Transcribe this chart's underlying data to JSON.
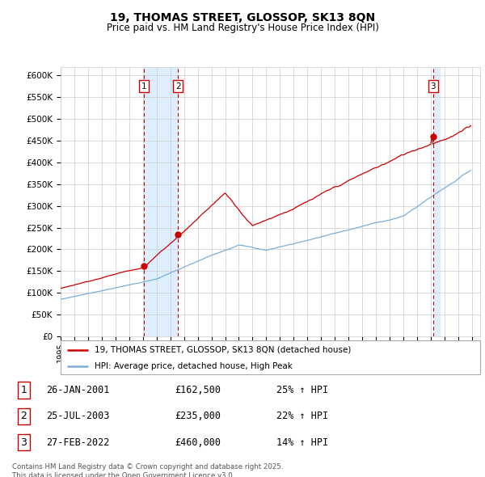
{
  "title": "19, THOMAS STREET, GLOSSOP, SK13 8QN",
  "subtitle": "Price paid vs. HM Land Registry's House Price Index (HPI)",
  "ylim": [
    0,
    620000
  ],
  "yticks": [
    0,
    50000,
    100000,
    150000,
    200000,
    250000,
    300000,
    350000,
    400000,
    450000,
    500000,
    550000,
    600000
  ],
  "ytick_labels": [
    "£0",
    "£50K",
    "£100K",
    "£150K",
    "£200K",
    "£250K",
    "£300K",
    "£350K",
    "£400K",
    "£450K",
    "£500K",
    "£550K",
    "£600K"
  ],
  "x_start_year": 1995,
  "x_end_year": 2025,
  "t1_date_num": 2001.07,
  "t2_date_num": 2003.56,
  "t3_date_num": 2022.16,
  "t1_price": 162500,
  "t2_price": 235000,
  "t3_price": 460000,
  "legend_line1": "19, THOMAS STREET, GLOSSOP, SK13 8QN (detached house)",
  "legend_line2": "HPI: Average price, detached house, High Peak",
  "footer": "Contains HM Land Registry data © Crown copyright and database right 2025.\nThis data is licensed under the Open Government Licence v3.0.",
  "transaction_table": [
    {
      "label": "1",
      "date": "26-JAN-2001",
      "price": "£162,500",
      "pct": "25% ↑ HPI"
    },
    {
      "label": "2",
      "date": "25-JUL-2003",
      "price": "£235,000",
      "pct": "22% ↑ HPI"
    },
    {
      "label": "3",
      "date": "27-FEB-2022",
      "price": "£460,000",
      "pct": "14% ↑ HPI"
    }
  ],
  "line_color_red": "#cc0000",
  "line_color_blue": "#7aaddb",
  "grid_color": "#cccccc",
  "transaction_box_color": "#cc0000",
  "shading_color": "#ddeeff",
  "background_color": "#ffffff"
}
